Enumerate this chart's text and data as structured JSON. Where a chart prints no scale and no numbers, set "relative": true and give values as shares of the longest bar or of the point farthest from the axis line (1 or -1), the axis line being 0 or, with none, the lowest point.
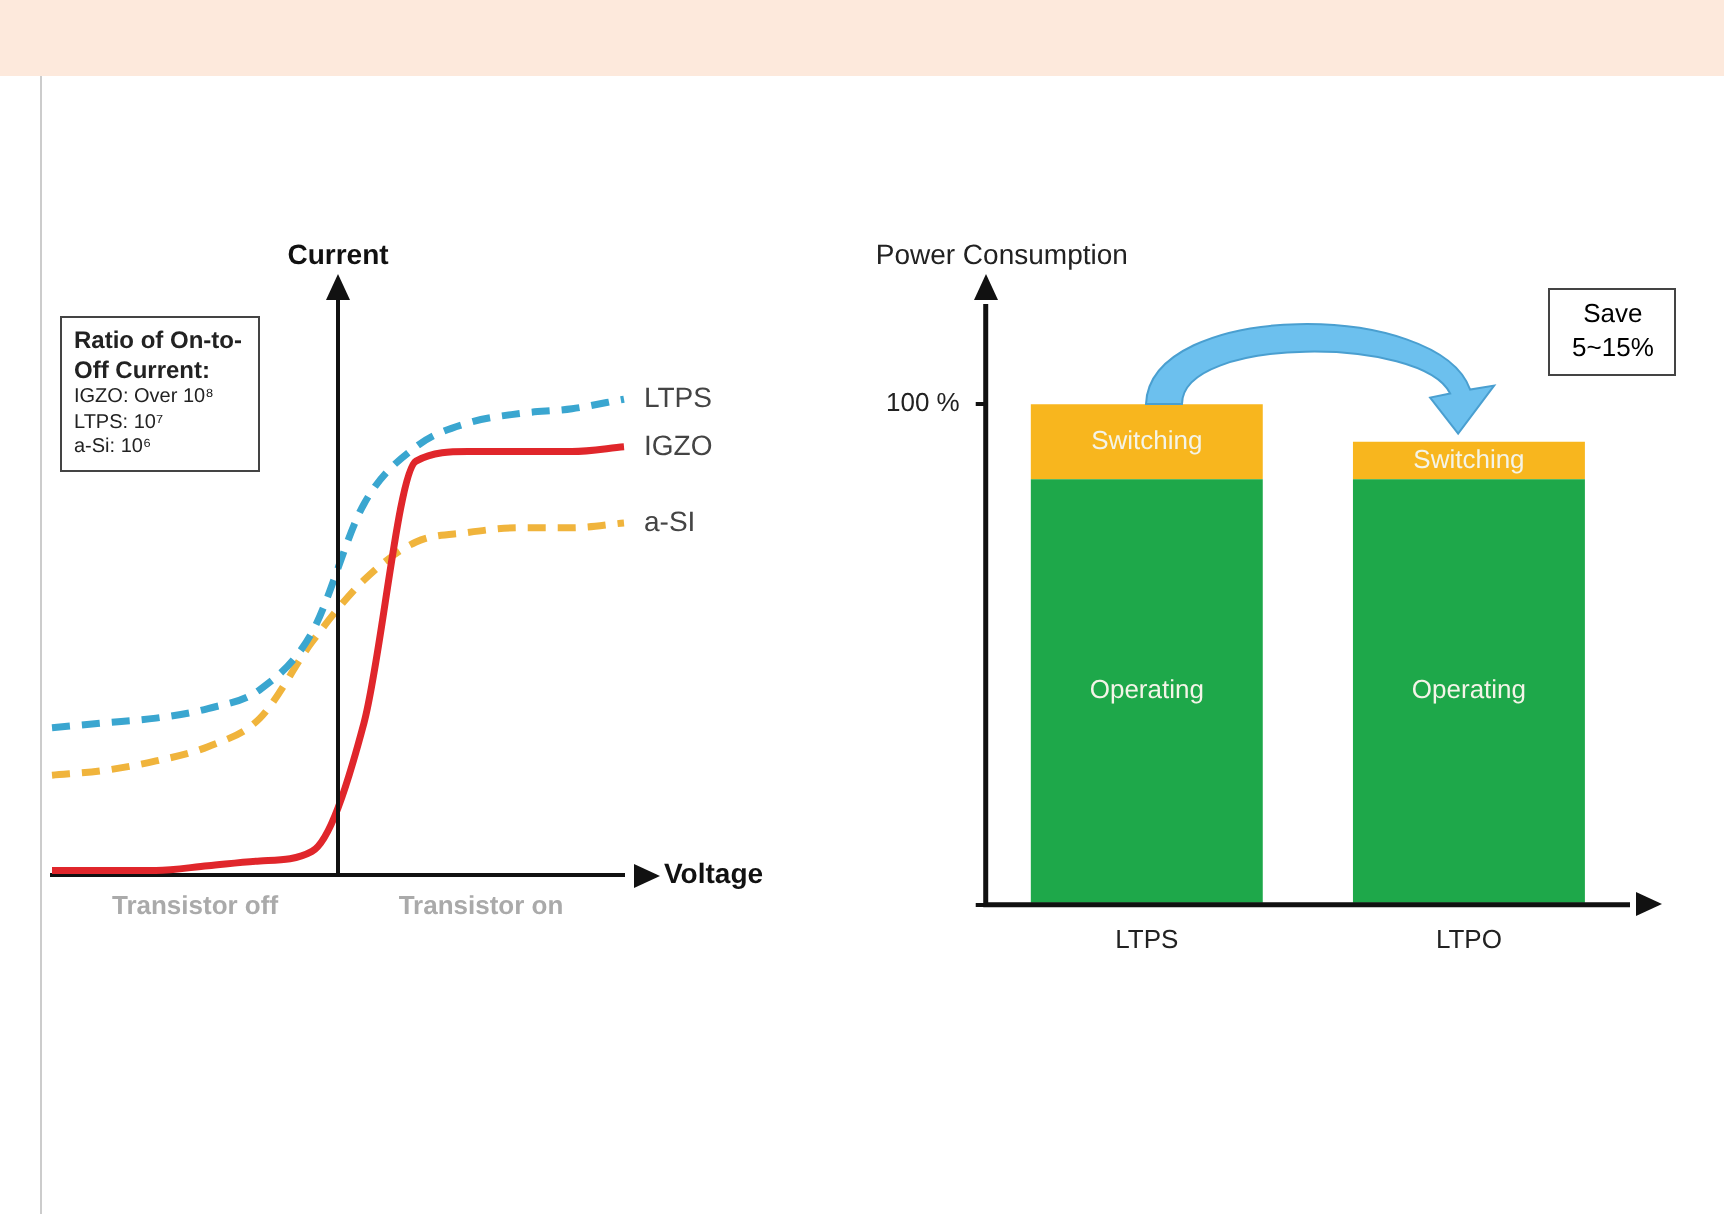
{
  "chart_data": [
    {
      "type": "line",
      "relative": true,
      "ylabel": "Current",
      "xlabel": "Voltage",
      "marker": "none",
      "grid": false,
      "legend": false,
      "categories": [
        null,
        null,
        null,
        null,
        null,
        null,
        null,
        null,
        null,
        null,
        null,
        null
      ],
      "series": [
        {
          "name": "LTPS",
          "color": "#3aa6d0",
          "line_style": "dashed",
          "values": [
            0.31,
            0.32,
            0.33,
            0.35,
            0.39,
            0.51,
            0.78,
            0.9,
            0.95,
            0.97,
            0.98,
            1
          ]
        },
        {
          "name": "IGZO",
          "color": "#e0262b",
          "line_style": "solid",
          "values": [
            0.01,
            0.01,
            0.01,
            0.02,
            0.03,
            0.05,
            0.32,
            0.87,
            0.89,
            0.89,
            0.89,
            0.9
          ]
        },
        {
          "name": "a-SI",
          "color": "#f0b43c",
          "line_style": "dashed",
          "values": [
            0.21,
            0.22,
            0.24,
            0.27,
            0.33,
            0.49,
            0.62,
            0.7,
            0.72,
            0.73,
            0.73,
            0.74
          ]
        }
      ],
      "annotations": [
        "Ratio of On-to-Off Current:",
        "IGZO: Over 10⁸",
        "LTPS: 10⁷",
        "a-Si: 10⁶",
        "Transistor off",
        "Transistor on"
      ]
    },
    {
      "type": "bar",
      "stacked": true,
      "ylabel": "Power Consumption",
      "grid": false,
      "legend": false,
      "categories": [
        "LTPS",
        "LTPO"
      ],
      "ylim": [
        0,
        120
      ],
      "yticks": [
        {
          "value": 0,
          "label": null
        },
        {
          "value": 100,
          "label": "100 %"
        }
      ],
      "series": [
        {
          "name": "Operating",
          "color": "#1ea84a",
          "values": [
            85,
            85
          ]
        },
        {
          "name": "Switching",
          "color": "#f8b61e",
          "values": [
            15,
            7.5
          ]
        }
      ],
      "annotations": [
        "Save 5~15%"
      ]
    }
  ]
}
